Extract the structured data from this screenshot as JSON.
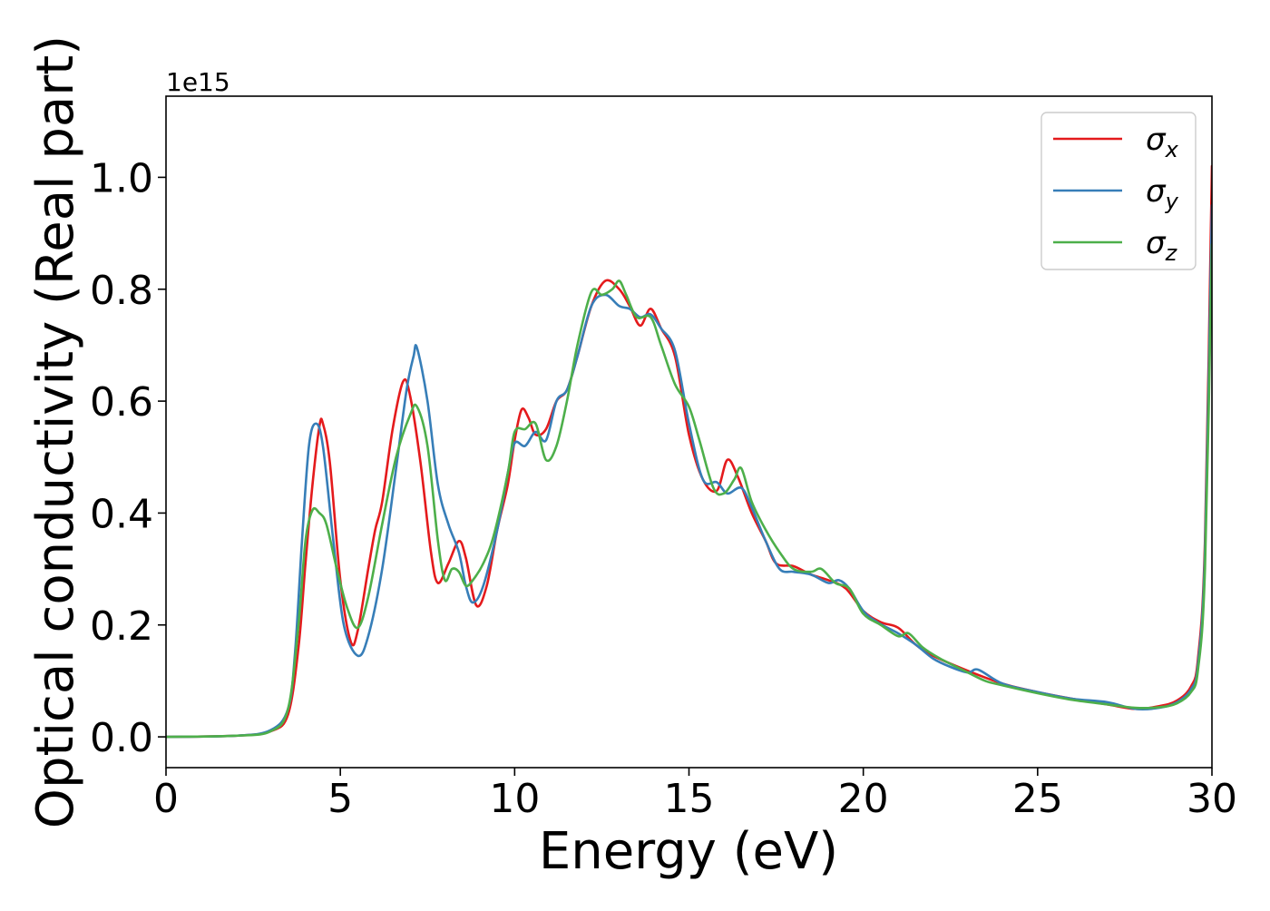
{
  "chart_data": {
    "type": "line",
    "title": "",
    "xlabel": "Energy (eV)",
    "ylabel": "Optical conductivity (Real part)",
    "y_offset_label": "1e15",
    "xlim": [
      0,
      30
    ],
    "ylim": [
      -0.055,
      1.145
    ],
    "x_ticks": [
      0,
      5,
      10,
      15,
      20,
      25,
      30
    ],
    "x_tick_labels": [
      "0",
      "5",
      "10",
      "15",
      "20",
      "25",
      "30"
    ],
    "y_ticks": [
      0.0,
      0.2,
      0.4,
      0.6,
      0.8,
      1.0
    ],
    "y_tick_labels": [
      "0.0",
      "0.2",
      "0.4",
      "0.6",
      "0.8",
      "1.0"
    ],
    "grid": false,
    "legend_position": "top-right",
    "series": [
      {
        "name": "σx",
        "legend_symbol": "σ",
        "legend_subscript": "x",
        "color": "#e41a1c",
        "points": [
          [
            0,
            0
          ],
          [
            2,
            0.002
          ],
          [
            3,
            0.01
          ],
          [
            3.5,
            0.04
          ],
          [
            3.8,
            0.16
          ],
          [
            4.0,
            0.31
          ],
          [
            4.2,
            0.45
          ],
          [
            4.4,
            0.555
          ],
          [
            4.5,
            0.56
          ],
          [
            4.7,
            0.49
          ],
          [
            5.0,
            0.28
          ],
          [
            5.3,
            0.17
          ],
          [
            5.5,
            0.19
          ],
          [
            5.8,
            0.3
          ],
          [
            6.0,
            0.37
          ],
          [
            6.2,
            0.42
          ],
          [
            6.5,
            0.55
          ],
          [
            6.8,
            0.635
          ],
          [
            7.0,
            0.61
          ],
          [
            7.3,
            0.49
          ],
          [
            7.6,
            0.33
          ],
          [
            7.8,
            0.275
          ],
          [
            8.1,
            0.31
          ],
          [
            8.4,
            0.35
          ],
          [
            8.6,
            0.32
          ],
          [
            8.9,
            0.235
          ],
          [
            9.2,
            0.27
          ],
          [
            9.5,
            0.37
          ],
          [
            9.8,
            0.45
          ],
          [
            10.0,
            0.53
          ],
          [
            10.2,
            0.585
          ],
          [
            10.4,
            0.57
          ],
          [
            10.6,
            0.54
          ],
          [
            10.9,
            0.55
          ],
          [
            11.2,
            0.6
          ],
          [
            11.5,
            0.62
          ],
          [
            11.8,
            0.68
          ],
          [
            12.2,
            0.77
          ],
          [
            12.6,
            0.815
          ],
          [
            13.0,
            0.8
          ],
          [
            13.3,
            0.77
          ],
          [
            13.6,
            0.735
          ],
          [
            13.9,
            0.765
          ],
          [
            14.2,
            0.73
          ],
          [
            14.6,
            0.68
          ],
          [
            15.0,
            0.54
          ],
          [
            15.4,
            0.46
          ],
          [
            15.8,
            0.44
          ],
          [
            16.1,
            0.495
          ],
          [
            16.4,
            0.465
          ],
          [
            16.8,
            0.4
          ],
          [
            17.2,
            0.35
          ],
          [
            17.5,
            0.31
          ],
          [
            18.0,
            0.305
          ],
          [
            18.5,
            0.29
          ],
          [
            19.0,
            0.28
          ],
          [
            19.5,
            0.265
          ],
          [
            20.0,
            0.225
          ],
          [
            20.5,
            0.205
          ],
          [
            21.0,
            0.195
          ],
          [
            21.5,
            0.165
          ],
          [
            22.0,
            0.145
          ],
          [
            23.0,
            0.118
          ],
          [
            24.0,
            0.095
          ],
          [
            25.0,
            0.08
          ],
          [
            26.0,
            0.068
          ],
          [
            27.0,
            0.058
          ],
          [
            27.8,
            0.05
          ],
          [
            28.5,
            0.055
          ],
          [
            29.0,
            0.065
          ],
          [
            29.4,
            0.09
          ],
          [
            29.6,
            0.14
          ],
          [
            29.8,
            0.35
          ],
          [
            30.0,
            1.02
          ]
        ]
      },
      {
        "name": "σy",
        "legend_symbol": "σ",
        "legend_subscript": "y",
        "color": "#377eb8",
        "points": [
          [
            0,
            0
          ],
          [
            2,
            0.002
          ],
          [
            3,
            0.012
          ],
          [
            3.5,
            0.05
          ],
          [
            3.7,
            0.15
          ],
          [
            3.9,
            0.35
          ],
          [
            4.1,
            0.52
          ],
          [
            4.3,
            0.56
          ],
          [
            4.5,
            0.52
          ],
          [
            4.8,
            0.35
          ],
          [
            5.1,
            0.2
          ],
          [
            5.5,
            0.145
          ],
          [
            5.8,
            0.18
          ],
          [
            6.2,
            0.3
          ],
          [
            6.6,
            0.48
          ],
          [
            6.9,
            0.62
          ],
          [
            7.1,
            0.68
          ],
          [
            7.2,
            0.695
          ],
          [
            7.5,
            0.6
          ],
          [
            7.8,
            0.45
          ],
          [
            8.1,
            0.38
          ],
          [
            8.4,
            0.33
          ],
          [
            8.6,
            0.27
          ],
          [
            8.8,
            0.24
          ],
          [
            9.1,
            0.27
          ],
          [
            9.5,
            0.37
          ],
          [
            9.8,
            0.47
          ],
          [
            10.0,
            0.525
          ],
          [
            10.3,
            0.52
          ],
          [
            10.6,
            0.545
          ],
          [
            10.9,
            0.53
          ],
          [
            11.2,
            0.6
          ],
          [
            11.5,
            0.62
          ],
          [
            11.8,
            0.68
          ],
          [
            12.2,
            0.77
          ],
          [
            12.6,
            0.79
          ],
          [
            13.0,
            0.77
          ],
          [
            13.3,
            0.765
          ],
          [
            13.6,
            0.75
          ],
          [
            13.9,
            0.755
          ],
          [
            14.2,
            0.73
          ],
          [
            14.6,
            0.69
          ],
          [
            15.0,
            0.56
          ],
          [
            15.4,
            0.46
          ],
          [
            15.8,
            0.455
          ],
          [
            16.1,
            0.435
          ],
          [
            16.5,
            0.445
          ],
          [
            16.8,
            0.41
          ],
          [
            17.2,
            0.35
          ],
          [
            17.6,
            0.3
          ],
          [
            18.0,
            0.295
          ],
          [
            18.5,
            0.29
          ],
          [
            19.0,
            0.275
          ],
          [
            19.3,
            0.28
          ],
          [
            19.6,
            0.265
          ],
          [
            20.0,
            0.225
          ],
          [
            20.4,
            0.205
          ],
          [
            21.0,
            0.185
          ],
          [
            21.5,
            0.165
          ],
          [
            22.0,
            0.14
          ],
          [
            22.5,
            0.125
          ],
          [
            23.0,
            0.115
          ],
          [
            23.3,
            0.12
          ],
          [
            24.0,
            0.095
          ],
          [
            25.0,
            0.08
          ],
          [
            26.0,
            0.068
          ],
          [
            27.0,
            0.062
          ],
          [
            27.8,
            0.05
          ],
          [
            28.5,
            0.052
          ],
          [
            29.0,
            0.062
          ],
          [
            29.4,
            0.085
          ],
          [
            29.6,
            0.13
          ],
          [
            29.8,
            0.33
          ],
          [
            30.0,
            0.95
          ]
        ]
      },
      {
        "name": "σz",
        "legend_symbol": "σ",
        "legend_subscript": "z",
        "color": "#4daf4a",
        "points": [
          [
            0,
            0
          ],
          [
            2,
            0.002
          ],
          [
            3,
            0.01
          ],
          [
            3.5,
            0.05
          ],
          [
            3.8,
            0.2
          ],
          [
            4.0,
            0.35
          ],
          [
            4.2,
            0.405
          ],
          [
            4.4,
            0.4
          ],
          [
            4.6,
            0.38
          ],
          [
            4.9,
            0.3
          ],
          [
            5.2,
            0.23
          ],
          [
            5.5,
            0.195
          ],
          [
            5.8,
            0.25
          ],
          [
            6.2,
            0.38
          ],
          [
            6.6,
            0.5
          ],
          [
            7.0,
            0.575
          ],
          [
            7.2,
            0.59
          ],
          [
            7.5,
            0.52
          ],
          [
            7.8,
            0.35
          ],
          [
            8.0,
            0.28
          ],
          [
            8.2,
            0.3
          ],
          [
            8.4,
            0.295
          ],
          [
            8.6,
            0.27
          ],
          [
            8.8,
            0.28
          ],
          [
            9.1,
            0.31
          ],
          [
            9.4,
            0.36
          ],
          [
            9.8,
            0.47
          ],
          [
            10.0,
            0.545
          ],
          [
            10.3,
            0.55
          ],
          [
            10.6,
            0.56
          ],
          [
            10.9,
            0.495
          ],
          [
            11.2,
            0.52
          ],
          [
            11.5,
            0.6
          ],
          [
            11.8,
            0.7
          ],
          [
            12.2,
            0.795
          ],
          [
            12.5,
            0.79
          ],
          [
            12.8,
            0.8
          ],
          [
            13.0,
            0.815
          ],
          [
            13.2,
            0.79
          ],
          [
            13.5,
            0.75
          ],
          [
            13.9,
            0.75
          ],
          [
            14.2,
            0.7
          ],
          [
            14.6,
            0.63
          ],
          [
            15.0,
            0.59
          ],
          [
            15.3,
            0.53
          ],
          [
            15.7,
            0.445
          ],
          [
            16.0,
            0.435
          ],
          [
            16.3,
            0.46
          ],
          [
            16.5,
            0.48
          ],
          [
            16.8,
            0.42
          ],
          [
            17.2,
            0.37
          ],
          [
            17.6,
            0.33
          ],
          [
            18.0,
            0.3
          ],
          [
            18.5,
            0.295
          ],
          [
            18.8,
            0.3
          ],
          [
            19.2,
            0.275
          ],
          [
            19.6,
            0.265
          ],
          [
            20.0,
            0.22
          ],
          [
            20.5,
            0.2
          ],
          [
            21.0,
            0.18
          ],
          [
            21.3,
            0.185
          ],
          [
            21.7,
            0.16
          ],
          [
            22.2,
            0.14
          ],
          [
            23.0,
            0.115
          ],
          [
            23.5,
            0.1
          ],
          [
            24.0,
            0.092
          ],
          [
            25.0,
            0.078
          ],
          [
            26.0,
            0.066
          ],
          [
            27.0,
            0.058
          ],
          [
            27.8,
            0.052
          ],
          [
            28.5,
            0.053
          ],
          [
            29.0,
            0.06
          ],
          [
            29.4,
            0.08
          ],
          [
            29.6,
            0.12
          ],
          [
            29.8,
            0.3
          ],
          [
            30.0,
            0.88
          ]
        ]
      }
    ]
  }
}
